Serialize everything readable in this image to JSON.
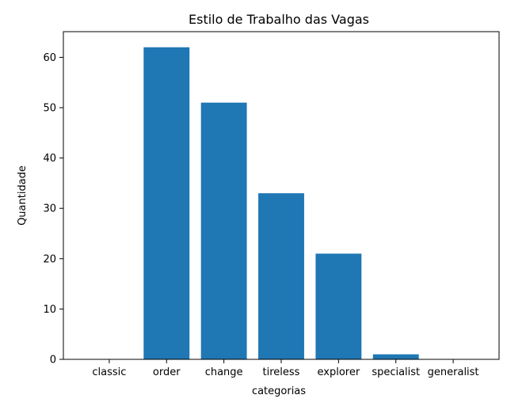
{
  "chart_data": {
    "type": "bar",
    "title": "Estilo de Trabalho das Vagas",
    "xlabel": "categorias",
    "ylabel": "Quantidade",
    "categories": [
      "classic",
      "order",
      "change",
      "tireless",
      "explorer",
      "specialist",
      "generalist"
    ],
    "values": [
      0,
      62,
      51,
      33,
      21,
      1,
      0
    ],
    "ylim": [
      0,
      65.1
    ],
    "yticks": [
      "0",
      "10",
      "20",
      "30",
      "40",
      "50",
      "60"
    ],
    "bar_color": "#1f77b4",
    "grid": false,
    "legend": "none"
  }
}
